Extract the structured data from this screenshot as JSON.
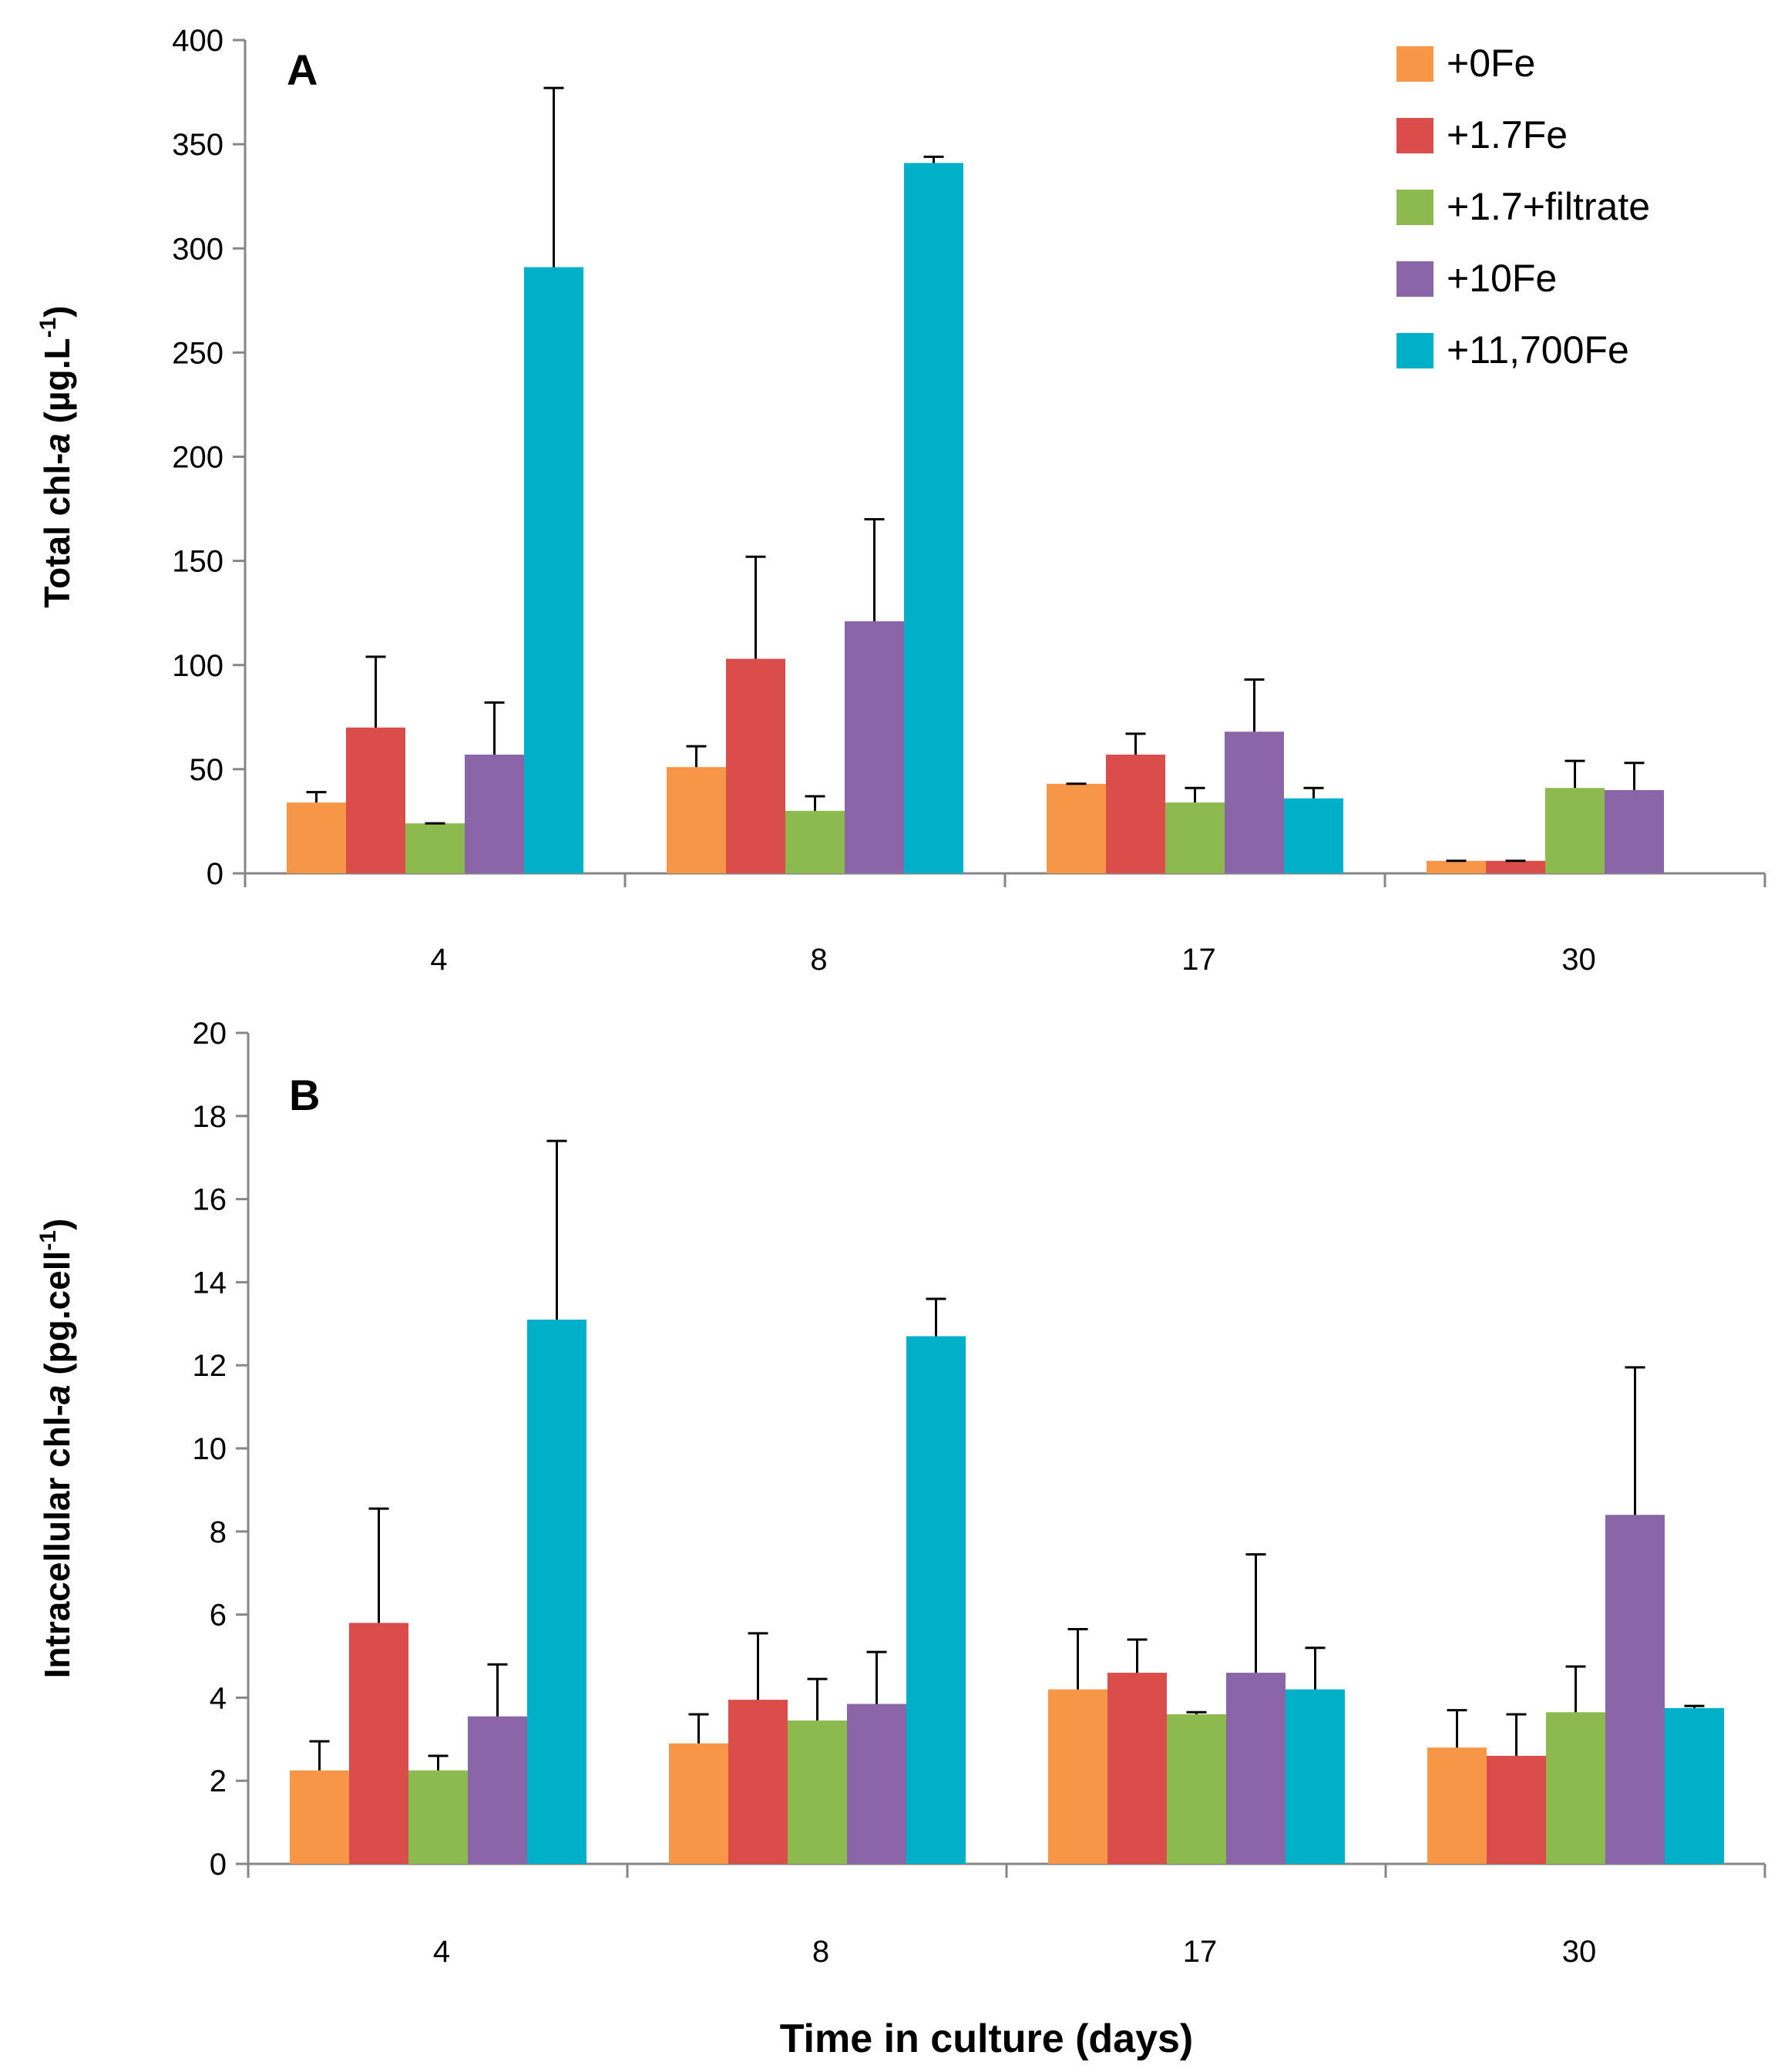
{
  "figure": {
    "xlabel": "Time in culture (days)"
  },
  "legend": [
    {
      "name": "+0Fe",
      "color": "#F79646"
    },
    {
      "name": "+1.7Fe",
      "color": "#DA4D4B"
    },
    {
      "name": "+1.7+filtrate",
      "color": "#8DBA4F"
    },
    {
      "name": "+10Fe",
      "color": "#8A66A8"
    },
    {
      "name": "+11,700Fe",
      "color": "#00AFC8"
    }
  ],
  "chart_data": [
    {
      "type": "bar",
      "panel": "A",
      "title": "",
      "ylabel": "Total chl-a (µg.L⁻¹)",
      "ylabel_parts": {
        "pre": "Total chl-",
        "italic": "a",
        "mid": " (µg.L",
        "sup": "-1",
        "post": ")"
      },
      "xlabel": "",
      "ylim": [
        0,
        400
      ],
      "yticks": [
        0,
        50,
        100,
        150,
        200,
        250,
        300,
        350,
        400
      ],
      "categories": [
        "4",
        "8",
        "17",
        "30"
      ],
      "series": [
        {
          "name": "+0Fe",
          "color": "#F79646",
          "values": [
            34,
            51,
            43,
            6
          ],
          "errors": [
            5,
            10,
            0,
            0
          ]
        },
        {
          "name": "+1.7Fe",
          "color": "#DA4D4B",
          "values": [
            70,
            103,
            57,
            6
          ],
          "errors": [
            34,
            49,
            10,
            0
          ]
        },
        {
          "name": "+1.7+filtrate",
          "color": "#8DBA4F",
          "values": [
            24,
            30,
            34,
            41
          ],
          "errors": [
            0,
            7,
            7,
            13
          ]
        },
        {
          "name": "+10Fe",
          "color": "#8A66A8",
          "values": [
            57,
            121,
            68,
            40
          ],
          "errors": [
            25,
            49,
            25,
            13
          ]
        },
        {
          "name": "+11,700Fe",
          "color": "#00AFC8",
          "values": [
            291,
            341,
            36,
            0
          ],
          "errors": [
            86,
            3,
            5,
            0
          ]
        }
      ]
    },
    {
      "type": "bar",
      "panel": "B",
      "title": "",
      "ylabel": "Intracellular chl-a (pg.cell⁻¹)",
      "ylabel_parts": {
        "pre": "Intracellular chl-",
        "italic": "a",
        "mid": " (pg.cell",
        "sup": "-1",
        "post": ")"
      },
      "xlabel": "Time in culture (days)",
      "ylim": [
        0,
        20
      ],
      "yticks": [
        0,
        2,
        4,
        6,
        8,
        10,
        12,
        14,
        16,
        18,
        20
      ],
      "categories": [
        "4",
        "8",
        "17",
        "30"
      ],
      "series": [
        {
          "name": "+0Fe",
          "color": "#F79646",
          "values": [
            2.25,
            2.9,
            4.2,
            2.8
          ],
          "errors": [
            0.7,
            0.7,
            1.45,
            0.9
          ]
        },
        {
          "name": "+1.7Fe",
          "color": "#DA4D4B",
          "values": [
            5.8,
            3.95,
            4.6,
            2.6
          ],
          "errors": [
            2.75,
            1.6,
            0.8,
            1.0
          ]
        },
        {
          "name": "+1.7+filtrate",
          "color": "#8DBA4F",
          "values": [
            2.25,
            3.45,
            3.6,
            3.65
          ],
          "errors": [
            0.35,
            1.0,
            0.05,
            1.1
          ]
        },
        {
          "name": "+10Fe",
          "color": "#8A66A8",
          "values": [
            3.55,
            3.85,
            4.6,
            8.4
          ],
          "errors": [
            1.25,
            1.25,
            2.85,
            3.55
          ]
        },
        {
          "name": "+11,700Fe",
          "color": "#00AFC8",
          "values": [
            13.1,
            12.7,
            4.2,
            3.75
          ],
          "errors": [
            4.3,
            0.9,
            1.0,
            0.05
          ]
        }
      ]
    }
  ]
}
